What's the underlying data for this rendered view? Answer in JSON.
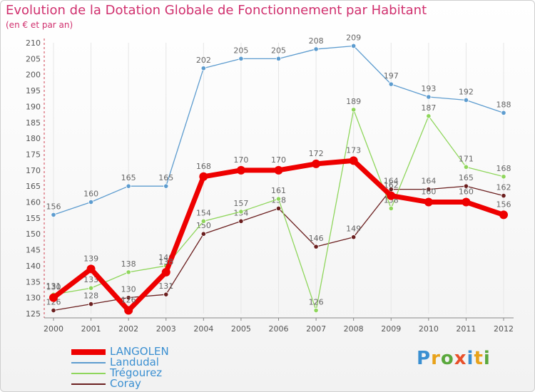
{
  "chart_data": {
    "type": "line",
    "title": "Evolution de la Dotation Globale de Fonctionnement par Habitant",
    "subtitle": "(en € et par an)",
    "x": [
      "2000",
      "2001",
      "2002",
      "2003",
      "2004",
      "2005",
      "2006",
      "2007",
      "2008",
      "2009",
      "2010",
      "2011",
      "2012"
    ],
    "ylim": [
      125,
      210
    ],
    "yticks": [
      125,
      130,
      135,
      140,
      145,
      150,
      155,
      160,
      165,
      170,
      175,
      180,
      185,
      190,
      195,
      200,
      205,
      210
    ],
    "grid": "vertical",
    "legend_position": "bottom-left",
    "series": [
      {
        "name": "LANGOLEN",
        "color": "#ee0000",
        "values": [
          130,
          139,
          126,
          138,
          168,
          170,
          170,
          172,
          173,
          162,
          160,
          160,
          156
        ]
      },
      {
        "name": "Landudal",
        "color": "#5d9ccf",
        "values": [
          156,
          160,
          165,
          165,
          202,
          205,
          205,
          208,
          209,
          197,
          193,
          192,
          188
        ]
      },
      {
        "name": "Trégourez",
        "color": "#8fd65c",
        "values": [
          131,
          133,
          138,
          140,
          154,
          157,
          161,
          126,
          189,
          158,
          187,
          171,
          168
        ]
      },
      {
        "name": "Coray",
        "color": "#6b1f1f",
        "values": [
          126,
          128,
          130,
          131,
          150,
          154,
          158,
          146,
          149,
          164,
          164,
          165,
          162
        ]
      }
    ]
  },
  "logo": {
    "letters": [
      "P",
      "r",
      "o",
      "x",
      "i",
      "t",
      "i"
    ],
    "colors": [
      "#3a8fd1",
      "#e8a21a",
      "#5aa83c",
      "#e8502a",
      "#3a8fd1",
      "#e8a21a",
      "#5aa83c"
    ]
  }
}
